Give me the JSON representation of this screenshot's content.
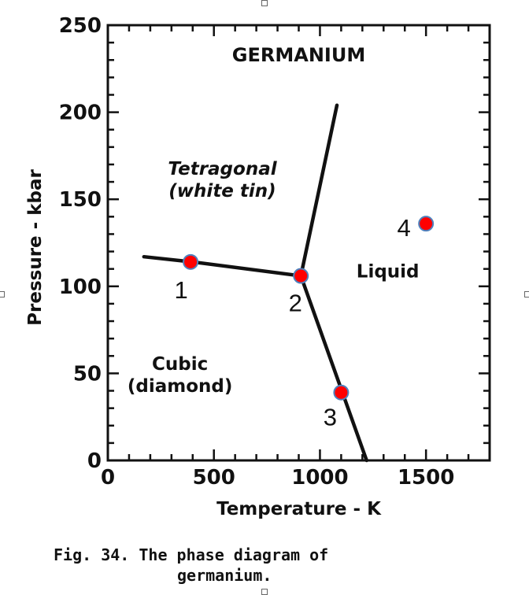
{
  "chart_data": {
    "type": "scatter",
    "title": "GERMANIUM",
    "xlabel": "Temperature - K",
    "ylabel": "Pressure - kbar",
    "xlim": [
      0,
      1800
    ],
    "ylim": [
      0,
      250
    ],
    "xticks": [
      0,
      500,
      1000,
      1500
    ],
    "yticks": [
      0,
      50,
      100,
      150,
      200,
      250
    ],
    "grid": false,
    "phase_boundaries": [
      {
        "x": [
          170,
          400,
          910
        ],
        "y": [
          117,
          114,
          106
        ]
      },
      {
        "x": [
          910,
          1080
        ],
        "y": [
          106,
          204
        ]
      },
      {
        "x": [
          910,
          1220
        ],
        "y": [
          106,
          0
        ]
      }
    ],
    "regions": [
      {
        "lines": [
          "Tetragonal",
          "(white tin)"
        ],
        "x": 540,
        "y": 164,
        "italic": true
      },
      {
        "lines": [
          "Liquid"
        ],
        "x": 1320,
        "y": 105,
        "italic": false
      },
      {
        "lines": [
          "Cubic",
          "(diamond)"
        ],
        "x": 340,
        "y": 52,
        "italic": false
      }
    ],
    "points": [
      {
        "label": "1",
        "x": 390,
        "y": 114
      },
      {
        "label": "2",
        "x": 910,
        "y": 106
      },
      {
        "label": "3",
        "x": 1100,
        "y": 39
      },
      {
        "label": "4",
        "x": 1500,
        "y": 136
      }
    ],
    "point_color": "#ff0000",
    "point_edge_color": "#4f81bd"
  },
  "caption": {
    "line1": "Fig. 34.  The phase diagram of",
    "line2": "germanium."
  }
}
